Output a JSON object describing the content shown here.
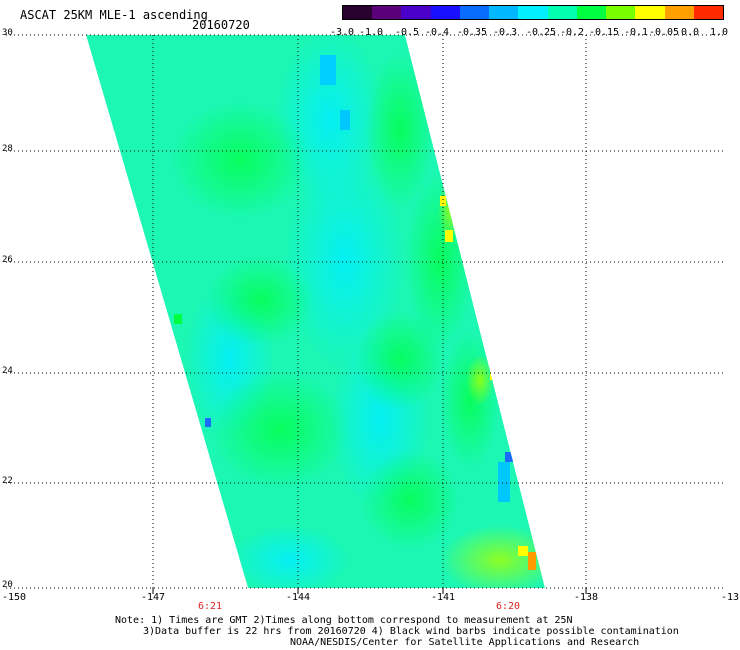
{
  "header": {
    "title": "ASCAT 25KM MLE-1 ascending",
    "date": "20160720"
  },
  "colorbar": {
    "ticks": [
      "-3.0",
      "-1.0",
      "-0.5",
      "-0.4",
      "-0.35",
      "-0.3",
      "-0.25",
      "-0.2",
      "-0.15",
      "-0.1",
      "-0.05",
      "0.0",
      "1.0"
    ],
    "colors": [
      "#2a0030",
      "#5c007a",
      "#4a00c8",
      "#1a10ff",
      "#0a6cff",
      "#00b8ff",
      "#00f0ff",
      "#00ffb0",
      "#00ff40",
      "#78ff00",
      "#ffff00",
      "#ffa000",
      "#ff2a00"
    ]
  },
  "axes": {
    "lat_labels": [
      "30",
      "28",
      "26",
      "24",
      "22",
      "20"
    ],
    "lon_labels": [
      "-150",
      "-147",
      "-144",
      "-141",
      "-138",
      "-13"
    ],
    "time_labels": [
      "6:21",
      "6:20"
    ]
  },
  "notes": {
    "line1": "Note: 1) Times are GMT 2)Times along bottom correspond to measurement at 25N",
    "line2": "3)Data buffer is 22 hrs from 20160720 4) Black wind barbs indicate possible contamination",
    "line3": "NOAA/NESDIS/Center for Satellite Applications and Research"
  }
}
